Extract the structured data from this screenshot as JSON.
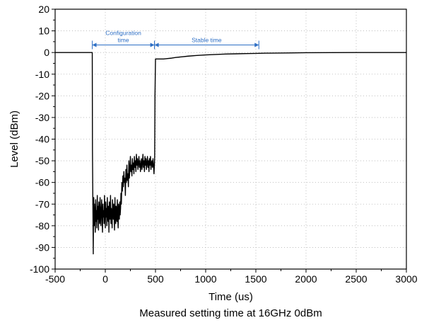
{
  "caption": "Measured setting time at 16GHz 0dBm",
  "chart_data": {
    "type": "line",
    "title": "",
    "xlabel": "Time (us)",
    "ylabel": "Level (dBm)",
    "xlim": [
      -500,
      3000
    ],
    "ylim": [
      -100,
      20
    ],
    "xticks": [
      -500,
      0,
      500,
      1000,
      1500,
      2000,
      2500,
      3000
    ],
    "yticks": [
      20,
      10,
      0,
      -10,
      -20,
      -30,
      -40,
      -50,
      -60,
      -70,
      -80,
      -90,
      -100
    ],
    "grid": true,
    "legend": "none",
    "series": [
      {
        "color": "#000000",
        "x": [
          -500,
          -130,
          -128,
          -120,
          -118,
          -115,
          -112,
          -108,
          -104,
          -100,
          -96,
          -92,
          -88,
          -84,
          -80,
          -76,
          -72,
          -68,
          -64,
          -60,
          -56,
          -52,
          -48,
          -44,
          -40,
          -36,
          -32,
          -28,
          -24,
          -20,
          -16,
          -12,
          -8,
          -4,
          0,
          4,
          8,
          12,
          16,
          20,
          24,
          28,
          32,
          36,
          40,
          44,
          48,
          52,
          56,
          60,
          64,
          68,
          72,
          76,
          80,
          84,
          88,
          92,
          96,
          100,
          104,
          108,
          112,
          116,
          120,
          124,
          128,
          132,
          136,
          140,
          144,
          148,
          152,
          156,
          160,
          165,
          170,
          175,
          180,
          185,
          190,
          195,
          200,
          205,
          210,
          215,
          220,
          225,
          230,
          235,
          240,
          245,
          250,
          255,
          260,
          265,
          270,
          275,
          280,
          285,
          290,
          295,
          300,
          305,
          310,
          315,
          320,
          325,
          330,
          335,
          340,
          345,
          350,
          355,
          360,
          365,
          370,
          375,
          380,
          385,
          390,
          395,
          400,
          405,
          410,
          415,
          420,
          425,
          430,
          435,
          440,
          445,
          450,
          455,
          460,
          465,
          470,
          475,
          480,
          485,
          490,
          492,
          495,
          500,
          540,
          580,
          620,
          660,
          700,
          760,
          820,
          900,
          1000,
          1100,
          1200,
          1300,
          1400,
          1500,
          1600,
          1800,
          2000,
          2500,
          3000
        ],
        "y": [
          0,
          0,
          -45,
          -93,
          -75,
          -67,
          -80,
          -70,
          -76,
          -83,
          -68,
          -78,
          -73,
          -81,
          -66,
          -77,
          -71,
          -82,
          -69,
          -75,
          -79,
          -67,
          -74,
          -80,
          -72,
          -68,
          -77,
          -83,
          -70,
          -76,
          -73,
          -79,
          -66,
          -74,
          -81,
          -69,
          -76,
          -72,
          -80,
          -67,
          -75,
          -78,
          -71,
          -83,
          -69,
          -74,
          -77,
          -66,
          -79,
          -72,
          -75,
          -81,
          -68,
          -73,
          -77,
          -70,
          -76,
          -82,
          -67,
          -74,
          -79,
          -71,
          -75,
          -78,
          -68,
          -76,
          -81,
          -70,
          -74,
          -77,
          -69,
          -75,
          -72,
          -65,
          -70,
          -60,
          -64,
          -57,
          -62,
          -55,
          -60,
          -58,
          -66,
          -54,
          -60,
          -52,
          -59,
          -56,
          -62,
          -50,
          -58,
          -54,
          -48,
          -55,
          -52,
          -57,
          -49,
          -54,
          -51,
          -56,
          -48,
          -53,
          -50,
          -55,
          -47,
          -52,
          -49,
          -54,
          -51,
          -48,
          -53,
          -50,
          -55,
          -52,
          -49,
          -54,
          -51,
          -47,
          -53,
          -50,
          -55,
          -48,
          -52,
          -49,
          -54,
          -51,
          -48,
          -53,
          -50,
          -55,
          -49,
          -52,
          -48,
          -54,
          -51,
          -50,
          -53,
          -49,
          -52,
          -56,
          -51,
          -48,
          -20,
          -3,
          -3,
          -3,
          -2.8,
          -2.6,
          -2.3,
          -2.0,
          -1.7,
          -1.4,
          -1.1,
          -0.9,
          -0.7,
          -0.6,
          -0.5,
          -0.4,
          -0.3,
          -0.2,
          -0.1,
          0,
          0
        ]
      }
    ],
    "annotations": [
      {
        "text_lines": [
          "Configuration",
          "time"
        ],
        "x_start": -130,
        "x_end": 490,
        "y": 3.5,
        "color": "#2e6fc5"
      },
      {
        "text_lines": [
          "Stable time"
        ],
        "x_start": 490,
        "x_end": 1530,
        "y": 3.5,
        "color": "#2e6fc5"
      }
    ]
  }
}
